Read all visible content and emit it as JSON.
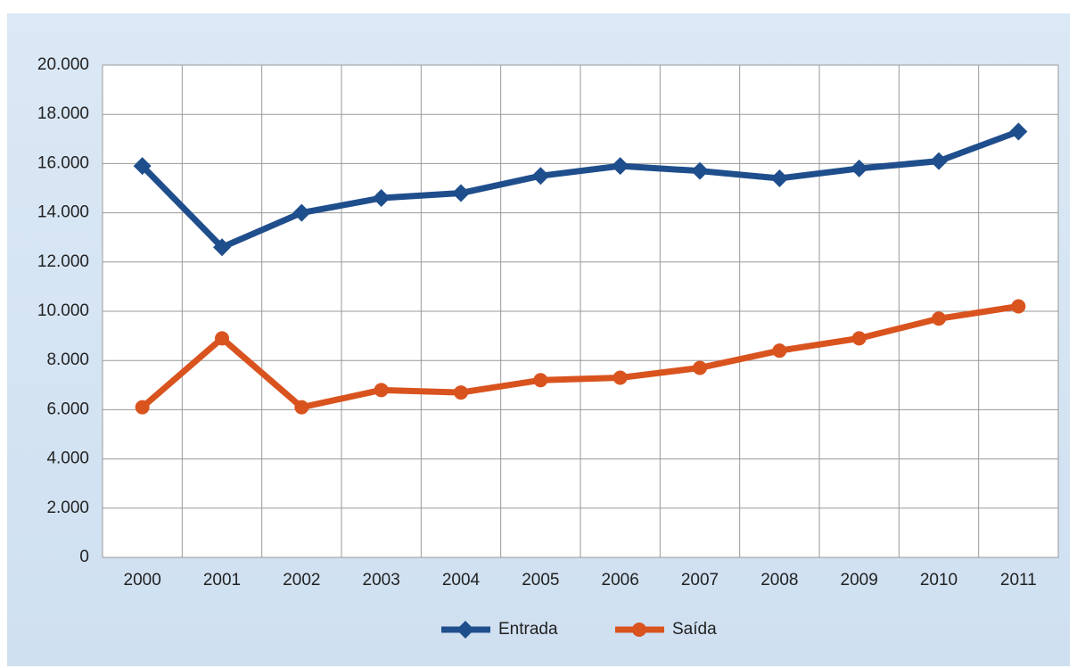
{
  "chart_data": {
    "type": "line",
    "categories": [
      "2000",
      "2001",
      "2002",
      "2003",
      "2004",
      "2005",
      "2006",
      "2007",
      "2008",
      "2009",
      "2010",
      "2011"
    ],
    "series": [
      {
        "name": "Entrada",
        "color": "#1f4e8c",
        "marker": "diamond",
        "values": [
          15900,
          12600,
          14000,
          14600,
          14800,
          15500,
          15900,
          15700,
          15400,
          15800,
          16100,
          17300
        ]
      },
      {
        "name": "Saída",
        "color": "#d9531e",
        "marker": "circle",
        "values": [
          6100,
          8900,
          6100,
          6800,
          6700,
          7200,
          7300,
          7700,
          8400,
          8900,
          9700,
          10200
        ]
      }
    ],
    "ylim": [
      0,
      20000
    ],
    "yticks": [
      0,
      {
        "value": 2000,
        "label": "2.000"
      },
      {
        "value": 4000,
        "label": "4.000"
      },
      {
        "value": 6000,
        "label": "6.000"
      },
      {
        "value": 8000,
        "label": "8.000"
      },
      {
        "value": 10000,
        "label": "10.000"
      },
      {
        "value": 12000,
        "label": "12.000"
      },
      {
        "value": 14000,
        "label": "14.000"
      },
      {
        "value": 16000,
        "label": "16.000"
      },
      {
        "value": 18000,
        "label": "18.000"
      },
      {
        "value": 20000,
        "label": "20.000"
      }
    ],
    "grid": true,
    "legend": "bottom"
  }
}
